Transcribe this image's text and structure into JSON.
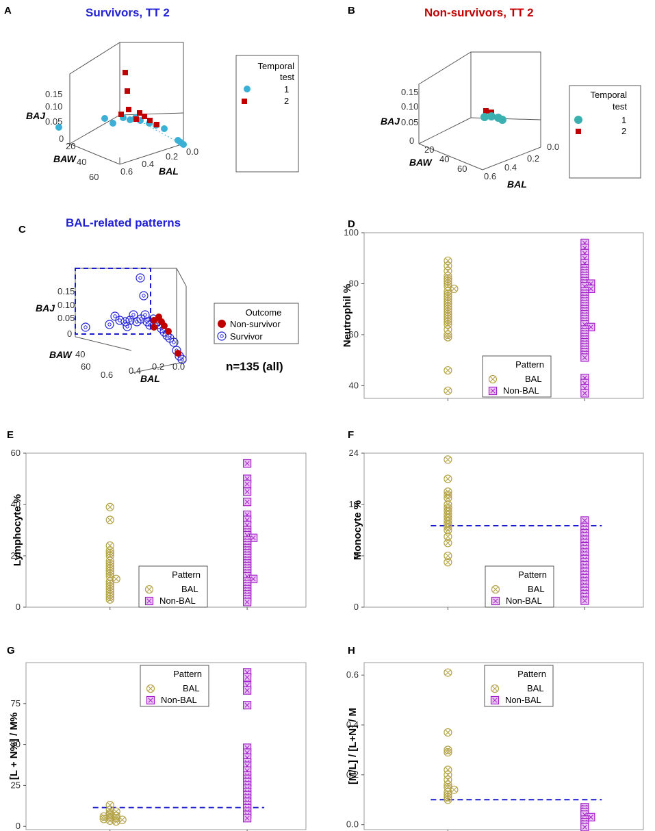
{
  "panel_labels": [
    "A",
    "B",
    "C",
    "D",
    "E",
    "F",
    "G",
    "H"
  ],
  "colors": {
    "survivor_title": "#1f1fd6",
    "nonsurvivor_title": "#c00000",
    "test1": "#3ab0d6",
    "test2": "#c00000",
    "bal": "#b5a44a",
    "nonbal": "#a320c8",
    "cutoff": "#1a1ad0",
    "survivor_marker": "#1f1fd6",
    "nonsurvivor_marker": "#c00000"
  },
  "chart_data": [
    {
      "id": "A",
      "type": "scatter3d",
      "title": "Survivors, TT 2",
      "axes": {
        "x": "BAL",
        "y": "BAW",
        "z": "BAJ"
      },
      "ticks": {
        "BAJ": [
          "0.15",
          "0.10",
          "0.05",
          "0"
        ],
        "BAW": [
          "20",
          "40",
          "60"
        ],
        "BAL": [
          "0.6",
          "0.4",
          "0.2",
          "0.0"
        ]
      },
      "legend": {
        "title_line1": "Temporal",
        "title_line2": "test",
        "entries": [
          "1",
          "2"
        ]
      }
    },
    {
      "id": "B",
      "type": "scatter3d",
      "title": "Non-survivors, TT 2",
      "axes": {
        "x": "BAL",
        "y": "BAW",
        "z": "BAJ"
      },
      "ticks": {
        "BAJ": [
          "0.15",
          "0.10",
          "0.05",
          "0"
        ],
        "BAW": [
          "20",
          "40",
          "60"
        ],
        "BAL": [
          "0.6",
          "0.4",
          "0.2",
          "0.0"
        ]
      },
      "legend": {
        "title_line1": "Temporal",
        "title_line2": "test",
        "entries": [
          "1",
          "2"
        ]
      }
    },
    {
      "id": "C",
      "type": "scatter3d",
      "title": "BAL-related patterns",
      "axes": {
        "x": "BAL",
        "y": "BAW",
        "z": "BAJ"
      },
      "ticks": {
        "BAJ": [
          "0.15",
          "0.10",
          "0.05",
          "0"
        ],
        "BAW": [
          "40",
          "60"
        ],
        "BAL": [
          "0.6",
          "0.4",
          "0.2",
          "0.0"
        ]
      },
      "legend": {
        "title": "Outcome",
        "entries": [
          "Non-survivor",
          "Survivor"
        ]
      },
      "annotation": "n=135 (all)"
    },
    {
      "id": "D",
      "type": "scatter",
      "ylabel": "Neutrophil %",
      "ylim": [
        35,
        100
      ],
      "yticks": [
        40,
        60,
        80,
        100
      ],
      "legend": {
        "title": "Pattern",
        "entries": [
          "BAL",
          "Non-BAL"
        ]
      },
      "series": [
        {
          "name": "BAL",
          "values": [
            89,
            87,
            85,
            83,
            82,
            81,
            80,
            79,
            78,
            77,
            76,
            75,
            74,
            73,
            72,
            71,
            70,
            69,
            68,
            67,
            66,
            65,
            64,
            62,
            60,
            59,
            46,
            38
          ]
        },
        {
          "name": "Non-BAL",
          "values": [
            96,
            94,
            92,
            90,
            88,
            86,
            85,
            84,
            83,
            82,
            81,
            80,
            80,
            79,
            78,
            77,
            76,
            75,
            74,
            73,
            72,
            71,
            70,
            69,
            68,
            67,
            66,
            65,
            64,
            63,
            62,
            61,
            60,
            59,
            58,
            57,
            56,
            55,
            54,
            53,
            52,
            51,
            43,
            41,
            39,
            37
          ]
        }
      ]
    },
    {
      "id": "E",
      "type": "scatter",
      "ylabel": "Lymphocyte %",
      "ylim": [
        0,
        60
      ],
      "yticks": [
        0,
        20,
        40,
        60
      ],
      "legend": {
        "title": "Pattern",
        "entries": [
          "BAL",
          "Non-BAL"
        ]
      },
      "series": [
        {
          "name": "BAL",
          "values": [
            39,
            34,
            24,
            22,
            21,
            20,
            18,
            17,
            16,
            15,
            14,
            13,
            12,
            11,
            10,
            9,
            8,
            7,
            6,
            5,
            4,
            3
          ]
        },
        {
          "name": "Non-BAL",
          "values": [
            56,
            50,
            48,
            45,
            41,
            36,
            34,
            32,
            30,
            29,
            28,
            27,
            26,
            25,
            24,
            23,
            22,
            21,
            20,
            19,
            18,
            17,
            16,
            15,
            14,
            13,
            12,
            11,
            10,
            9,
            8,
            7,
            6,
            5,
            4,
            3,
            2
          ]
        }
      ]
    },
    {
      "id": "F",
      "type": "scatter",
      "ylabel": "Monocyte %",
      "ylim": [
        0,
        24
      ],
      "yticks": [
        0,
        8,
        16,
        24
      ],
      "cutoff": 12.7,
      "legend": {
        "title": "Pattern",
        "entries": [
          "BAL",
          "Non-BAL"
        ]
      },
      "series": [
        {
          "name": "BAL",
          "values": [
            23,
            20,
            18,
            17.5,
            17,
            16,
            15.5,
            15,
            14.5,
            14,
            13.5,
            13,
            12.5,
            12,
            11,
            10,
            8,
            7
          ]
        },
        {
          "name": "Non-BAL",
          "values": [
            13.5,
            12.5,
            12,
            11.5,
            11,
            10.5,
            10,
            9.5,
            9,
            8.5,
            8,
            7.5,
            7,
            6.5,
            6,
            5.5,
            5,
            4.5,
            4,
            3.5,
            3,
            2.5,
            2,
            1.5,
            1
          ]
        }
      ]
    },
    {
      "id": "G",
      "type": "scatter",
      "ylabel": "[L + N%] / M%",
      "ylim": [
        -2,
        100
      ],
      "yticks": [
        0,
        25,
        50,
        75
      ],
      "cutoff": 11.5,
      "legend": {
        "title": "Pattern",
        "entries": [
          "BAL",
          "Non-BAL"
        ]
      },
      "series": [
        {
          "name": "BAL",
          "values": [
            13,
            10,
            9,
            8,
            7,
            6.5,
            6,
            5.5,
            5,
            4.5,
            4,
            3.5,
            3
          ]
        },
        {
          "name": "Non-BAL",
          "values": [
            94,
            91,
            86,
            83,
            74,
            48,
            45,
            42,
            39,
            37,
            34,
            31,
            29,
            27,
            25,
            23,
            21,
            19,
            17,
            15,
            13,
            11,
            9,
            7,
            5
          ]
        }
      ]
    },
    {
      "id": "H",
      "type": "scatter",
      "ylabel": "[M/L] / [L+N] / M",
      "ylim": [
        -0.02,
        0.65
      ],
      "yticks": [
        0.0,
        0.2,
        0.4,
        0.6
      ],
      "ytick_labels": [
        "0.0",
        "0.2",
        "0.4",
        "0.6"
      ],
      "cutoff": 0.1,
      "legend": {
        "title": "Pattern",
        "entries": [
          "BAL",
          "Non-BAL"
        ]
      },
      "series": [
        {
          "name": "BAL",
          "values": [
            0.61,
            0.37,
            0.3,
            0.29,
            0.22,
            0.2,
            0.18,
            0.16,
            0.15,
            0.14,
            0.13,
            0.12,
            0.11,
            0.1
          ]
        },
        {
          "name": "Non-BAL",
          "values": [
            0.07,
            0.06,
            0.05,
            0.04,
            0.03,
            0.02,
            0.01,
            0.0,
            -0.01
          ]
        }
      ]
    }
  ]
}
